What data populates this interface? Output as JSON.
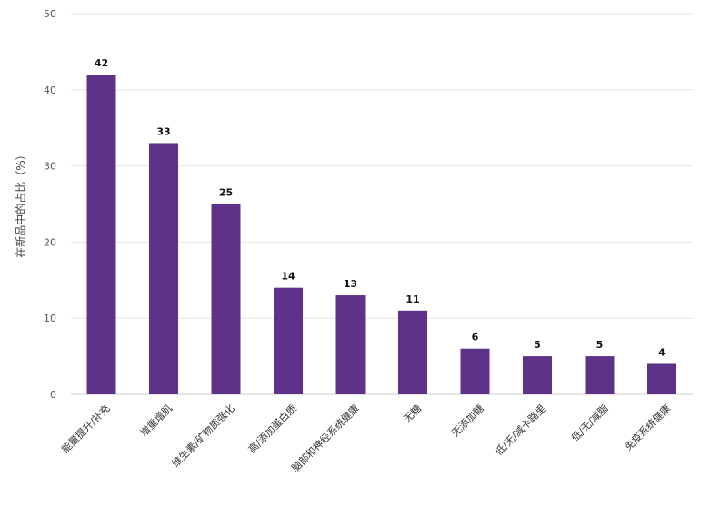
{
  "chart_data": {
    "type": "bar",
    "ylabel": "在新品中的占比（%）",
    "ylim": [
      0,
      50
    ],
    "yticks": [
      0,
      10,
      20,
      30,
      40,
      50
    ],
    "grid": true,
    "bar_color": "#5e3288",
    "categories": [
      "能量提升/补充",
      "增重增肌",
      "维生素/矿物质强化",
      "高/添加蛋白质",
      "脑部和神经系统健康",
      "无糖",
      "无添加糖",
      "低/无/减卡路里",
      "低/无/减脂",
      "免疫系统健康"
    ],
    "values": [
      42,
      33,
      25,
      14,
      13,
      11,
      6,
      5,
      5,
      4
    ]
  }
}
